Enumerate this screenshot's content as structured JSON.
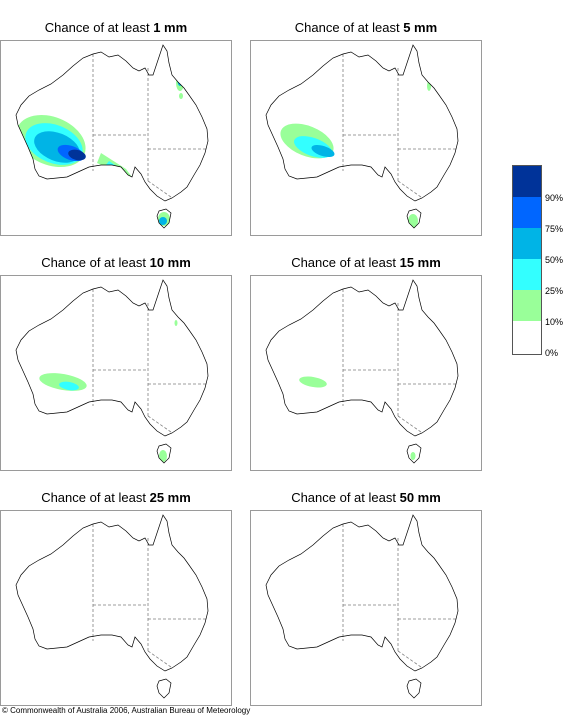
{
  "title_prefix": "Chance of at least",
  "panels": [
    {
      "threshold": "1 mm"
    },
    {
      "threshold": "5 mm"
    },
    {
      "threshold": "10 mm"
    },
    {
      "threshold": "15 mm"
    },
    {
      "threshold": "25 mm"
    },
    {
      "threshold": "50 mm"
    }
  ],
  "legend": {
    "labels": [
      "90%",
      "75%",
      "50%",
      "25%",
      "10%",
      "0%"
    ],
    "colors": [
      "#003399",
      "#0066ff",
      "#00b4e6",
      "#33ffff",
      "#99ff99",
      "#ffffff"
    ]
  },
  "map_colors": {
    "coast": "#000000",
    "state_border": "#7f7f7f"
  },
  "copyright": "© Commonwealth of Australia 2006, Australian Bureau of Meteorology"
}
